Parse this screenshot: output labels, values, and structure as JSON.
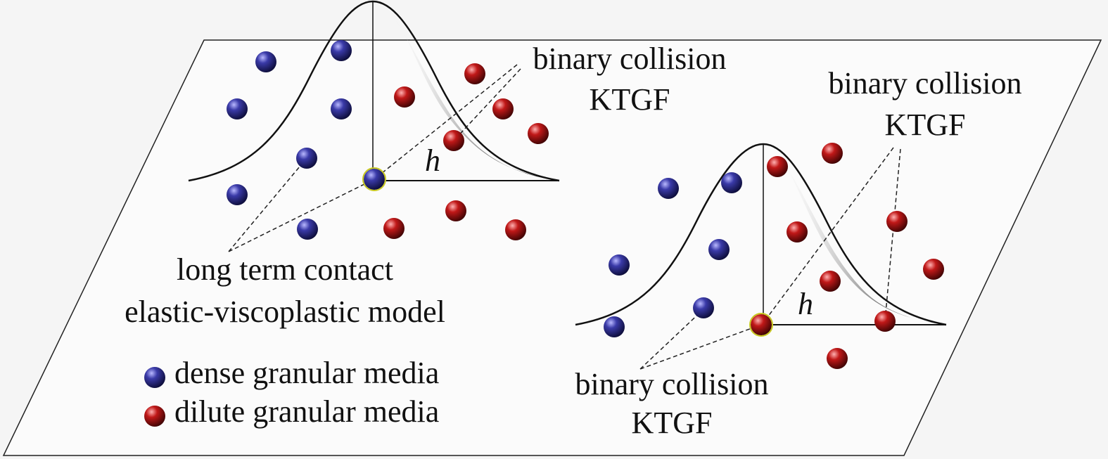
{
  "left_peak": {
    "annotation": {
      "line1": "binary collision",
      "line2": "KTGF"
    },
    "height_label": "h",
    "contact_label": {
      "line1": "long term contact",
      "line2": "elastic-viscoplastic model"
    }
  },
  "right_peak": {
    "top_annotation": {
      "line1": "binary collision",
      "line2": "KTGF"
    },
    "height_label": "h",
    "bottom_annotation": {
      "line1": "binary collision",
      "line2": "KTGF"
    }
  },
  "legend": {
    "items": [
      "dense granular media",
      "dilute granular media"
    ]
  }
}
